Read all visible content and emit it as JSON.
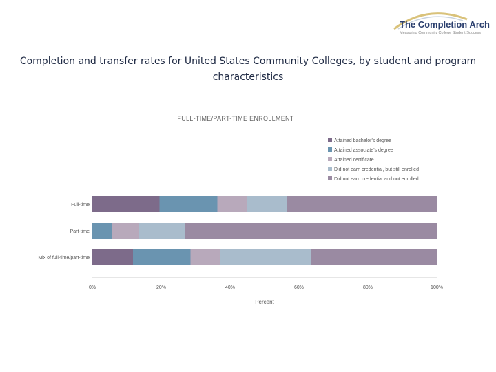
{
  "logo": {
    "title": "The Completion Arch",
    "tagline": "Measuring Community College Student Success",
    "colors": {
      "arch": "#d9c27a",
      "title": "#2b3f6e"
    }
  },
  "slide_title": "Completion and transfer rates for United States Community Colleges, by student and program characteristics",
  "chart_data": {
    "type": "bar",
    "stacked": true,
    "orientation": "horizontal",
    "title": "FULL-TIME/PART-TIME ENROLLMENT",
    "xlabel": "Percent",
    "xlim": [
      0,
      100
    ],
    "xticks": [
      "0%",
      "20%",
      "40%",
      "60%",
      "80%",
      "100%"
    ],
    "categories": [
      "Full-time",
      "Part-time",
      "Mix of full-time/part-time"
    ],
    "legend_position": "top-right",
    "series": [
      {
        "name": "Attained bachelor's degree",
        "color": "#7d6b8a",
        "values": [
          19.5,
          0,
          11.8
        ]
      },
      {
        "name": "Attained associate's degree",
        "color": "#6a94b0",
        "values": [
          16.8,
          5.6,
          16.7
        ]
      },
      {
        "name": "Attained certificate",
        "color": "#b8a9bb",
        "values": [
          8.6,
          8.0,
          8.5
        ]
      },
      {
        "name": "Did not earn credential, but still enrolled",
        "color": "#a9bccc",
        "values": [
          11.6,
          13.4,
          26.4
        ]
      },
      {
        "name": "Did not earn credential and not enrolled",
        "color": "#9a8aa2",
        "values": [
          43.5,
          73.0,
          36.6
        ]
      }
    ]
  }
}
